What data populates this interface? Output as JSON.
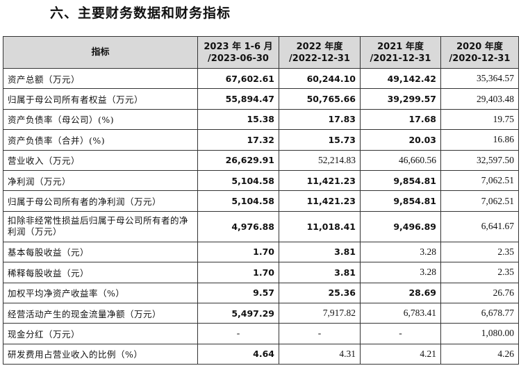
{
  "heading": "六、主要财务数据和财务指标",
  "columns": {
    "indicator": "指标",
    "c1_l1": "2023 年 1-6 月",
    "c1_l2": "/2023-06-30",
    "c2_l1": "2022 年度",
    "c2_l2": "/2022-12-31",
    "c3_l1": "2021 年度",
    "c3_l2": "/2021-12-31",
    "c4_l1": "2020 年度",
    "c4_l2": "/2020-12-31"
  },
  "rows": [
    {
      "label": "资产总额（万元）",
      "v": [
        "67,602.61",
        "60,244.10",
        "49,142.42",
        "35,364.57"
      ]
    },
    {
      "label": "归属于母公司所有者权益（万元）",
      "v": [
        "55,894.47",
        "50,765.66",
        "39,299.57",
        "29,403.48"
      ]
    },
    {
      "label": "资产负债率（母公司）(%)",
      "v": [
        "15.38",
        "17.83",
        "17.68",
        "19.75"
      ]
    },
    {
      "label": "资产负债率（合并）(%)",
      "v": [
        "17.32",
        "15.73",
        "20.03",
        "16.86"
      ]
    },
    {
      "label": "营业收入（万元）",
      "v": [
        "26,629.91",
        "52,214.83",
        "46,660.56",
        "32,597.50"
      ]
    },
    {
      "label": "净利润（万元）",
      "v": [
        "5,104.58",
        "11,421.23",
        "9,854.81",
        "7,062.51"
      ]
    },
    {
      "label": "归属于母公司所有者的净利润（万元）",
      "v": [
        "5,104.58",
        "11,421.23",
        "9,854.81",
        "7,062.51"
      ]
    },
    {
      "label": "扣除非经常性损益后归属于母公司所有者的净利润（万元）",
      "v": [
        "4,976.88",
        "11,018.41",
        "9,496.89",
        "6,641.67"
      ]
    },
    {
      "label": "基本每股收益（元）",
      "v": [
        "1.70",
        "3.81",
        "3.28",
        "2.35"
      ]
    },
    {
      "label": "稀释每股收益（元）",
      "v": [
        "1.70",
        "3.81",
        "3.28",
        "2.35"
      ]
    },
    {
      "label": "加权平均净资产收益率（%）",
      "v": [
        "9.57",
        "25.36",
        "28.69",
        "26.76"
      ]
    },
    {
      "label": "经营活动产生的现金流量净额（万元）",
      "v": [
        "5,497.29",
        "7,917.82",
        "6,783.41",
        "6,678.77"
      ]
    },
    {
      "label": "现金分红（万元）",
      "v": [
        "-",
        "-",
        "-",
        "1,080.00"
      ]
    },
    {
      "label": "研发费用占营业收入的比例（%）",
      "v": [
        "4.64",
        "4.31",
        "4.21",
        "4.26"
      ]
    }
  ]
}
